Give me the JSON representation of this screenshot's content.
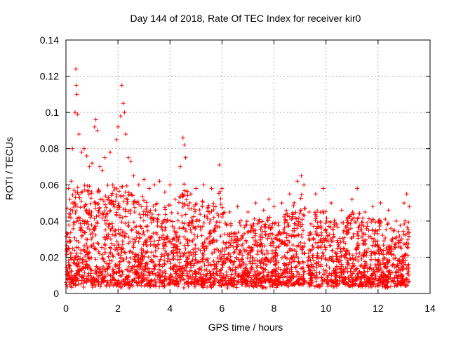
{
  "chart_data": {
    "type": "scatter",
    "title": "Day 144 of 2018, Rate Of TEC Index for receiver kir0",
    "xlabel": "GPS time / hours",
    "ylabel": "ROTI / TECUs",
    "xlim": [
      0,
      14
    ],
    "ylim": [
      0,
      0.14
    ],
    "x_ticks": [
      0,
      2,
      4,
      6,
      8,
      10,
      12,
      14
    ],
    "x_tick_labels": [
      "0",
      "2",
      "4",
      "6",
      "8",
      "10",
      "12",
      "14"
    ],
    "y_ticks": [
      0,
      0.02,
      0.04,
      0.06,
      0.08,
      0.1,
      0.12,
      0.14
    ],
    "y_tick_labels": [
      "0",
      "0.02",
      "0.04",
      "0.06",
      "0.08",
      "0.1",
      "0.12",
      "0.14"
    ],
    "grid": true,
    "marker": "+",
    "color": "#ff0000",
    "data_extent_hours": [
      0,
      13.2
    ],
    "data_gap_hours": [
      9.2,
      9.3
    ],
    "series": [
      {
        "name": "ROTI",
        "note": "dense point cloud; representative points listed, remainder generated within the envelope",
        "points": [
          [
            0.05,
            0.047
          ],
          [
            0.1,
            0.058
          ],
          [
            0.15,
            0.052
          ],
          [
            0.2,
            0.062
          ],
          [
            0.25,
            0.08
          ],
          [
            0.35,
            0.1
          ],
          [
            0.38,
            0.124
          ],
          [
            0.4,
            0.115
          ],
          [
            0.42,
            0.11
          ],
          [
            0.45,
            0.099
          ],
          [
            0.5,
            0.088
          ],
          [
            0.6,
            0.078
          ],
          [
            0.7,
            0.08
          ],
          [
            0.8,
            0.076
          ],
          [
            0.9,
            0.07
          ],
          [
            1.0,
            0.072
          ],
          [
            1.1,
            0.092
          ],
          [
            1.15,
            0.096
          ],
          [
            1.2,
            0.09
          ],
          [
            1.3,
            0.07
          ],
          [
            1.4,
            0.068
          ],
          [
            1.5,
            0.075
          ],
          [
            1.7,
            0.078
          ],
          [
            1.8,
            0.06
          ],
          [
            1.95,
            0.085
          ],
          [
            2.0,
            0.092
          ],
          [
            2.1,
            0.098
          ],
          [
            2.15,
            0.115
          ],
          [
            2.2,
            0.105
          ],
          [
            2.25,
            0.1
          ],
          [
            2.3,
            0.088
          ],
          [
            2.4,
            0.075
          ],
          [
            2.5,
            0.073
          ],
          [
            2.6,
            0.065
          ],
          [
            2.8,
            0.06
          ],
          [
            3.0,
            0.063
          ],
          [
            3.2,
            0.058
          ],
          [
            3.4,
            0.06
          ],
          [
            3.6,
            0.062
          ],
          [
            3.8,
            0.056
          ],
          [
            4.0,
            0.06
          ],
          [
            4.2,
            0.052
          ],
          [
            4.4,
            0.07
          ],
          [
            4.5,
            0.086
          ],
          [
            4.55,
            0.082
          ],
          [
            4.6,
            0.075
          ],
          [
            4.8,
            0.055
          ],
          [
            5.0,
            0.058
          ],
          [
            5.3,
            0.06
          ],
          [
            5.6,
            0.058
          ],
          [
            5.9,
            0.071
          ],
          [
            6.0,
            0.058
          ],
          [
            6.3,
            0.045
          ],
          [
            6.6,
            0.048
          ],
          [
            7.0,
            0.045
          ],
          [
            7.3,
            0.05
          ],
          [
            7.6,
            0.046
          ],
          [
            7.8,
            0.052
          ],
          [
            8.0,
            0.048
          ],
          [
            8.3,
            0.05
          ],
          [
            8.6,
            0.055
          ],
          [
            8.9,
            0.062
          ],
          [
            9.05,
            0.065
          ],
          [
            9.15,
            0.06
          ],
          [
            9.35,
            0.045
          ],
          [
            9.6,
            0.055
          ],
          [
            9.9,
            0.058
          ],
          [
            10.2,
            0.05
          ],
          [
            10.6,
            0.046
          ],
          [
            11.0,
            0.052
          ],
          [
            11.2,
            0.058
          ],
          [
            11.5,
            0.045
          ],
          [
            11.8,
            0.048
          ],
          [
            12.1,
            0.05
          ],
          [
            12.4,
            0.046
          ],
          [
            12.7,
            0.04
          ],
          [
            13.0,
            0.05
          ],
          [
            13.1,
            0.055
          ],
          [
            13.2,
            0.048
          ]
        ]
      }
    ]
  }
}
